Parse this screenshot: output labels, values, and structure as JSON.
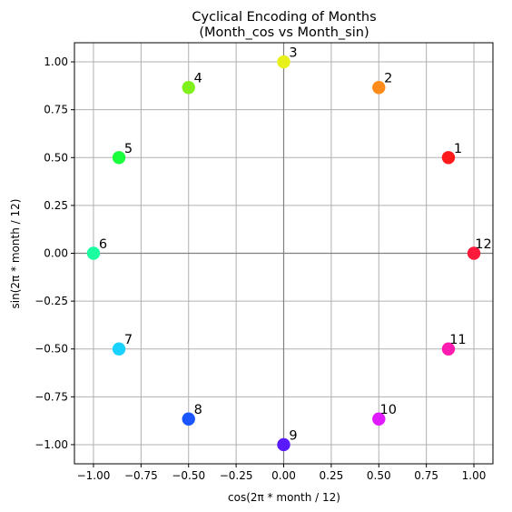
{
  "chart_data": {
    "type": "scatter",
    "title": [
      "Cyclical Encoding of Months",
      "(Month_cos vs Month_sin)"
    ],
    "xlabel": "cos(2π * month / 12)",
    "ylabel": "sin(2π * month / 12)",
    "xlim": [
      -1.1,
      1.1
    ],
    "ylim": [
      -1.1,
      1.1
    ],
    "xticks": [
      -1.0,
      -0.75,
      -0.5,
      -0.25,
      0.0,
      0.25,
      0.5,
      0.75,
      1.0
    ],
    "yticks": [
      -1.0,
      -0.75,
      -0.5,
      -0.25,
      0.0,
      0.25,
      0.5,
      0.75,
      1.0
    ],
    "xtick_labels": [
      "−1.00",
      "−0.75",
      "−0.50",
      "−0.25",
      "0.00",
      "0.25",
      "0.50",
      "0.75",
      "1.00"
    ],
    "ytick_labels": [
      "−1.00",
      "−0.75",
      "−0.50",
      "−0.25",
      "0.00",
      "0.25",
      "0.50",
      "0.75",
      "1.00"
    ],
    "grid": true,
    "reference_lines": {
      "x": 0,
      "y": 0,
      "color": "#808080"
    },
    "points": [
      {
        "label": "1",
        "x": 0.866,
        "y": 0.5,
        "color": "#ff1a1a"
      },
      {
        "label": "2",
        "x": 0.5,
        "y": 0.866,
        "color": "#ff8c1a"
      },
      {
        "label": "3",
        "x": 0.0,
        "y": 1.0,
        "color": "#e8f01a"
      },
      {
        "label": "4",
        "x": -0.5,
        "y": 0.866,
        "color": "#80f01a"
      },
      {
        "label": "5",
        "x": -0.866,
        "y": 0.5,
        "color": "#1aff3c"
      },
      {
        "label": "6",
        "x": -1.0,
        "y": 0.0,
        "color": "#1affa0"
      },
      {
        "label": "7",
        "x": -0.866,
        "y": -0.5,
        "color": "#1ad2ff"
      },
      {
        "label": "8",
        "x": -0.5,
        "y": -0.866,
        "color": "#1a55ff"
      },
      {
        "label": "9",
        "x": 0.0,
        "y": -1.0,
        "color": "#5a1aff"
      },
      {
        "label": "10",
        "x": 0.5,
        "y": -0.866,
        "color": "#e01aff"
      },
      {
        "label": "11",
        "x": 0.866,
        "y": -0.5,
        "color": "#ff1ab0"
      },
      {
        "label": "12",
        "x": 1.0,
        "y": 0.0,
        "color": "#ff1a3c"
      }
    ]
  }
}
